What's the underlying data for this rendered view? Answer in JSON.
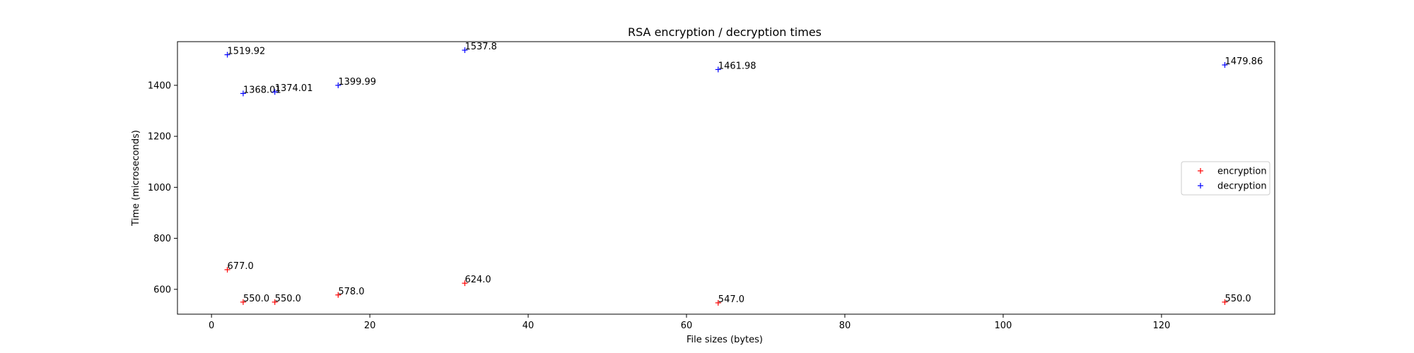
{
  "chart_data": {
    "type": "scatter",
    "title": "RSA encryption / decryption times",
    "xlabel": "File sizes (bytes)",
    "ylabel": "Time (microseconds)",
    "xlim": [
      -4.3,
      134.3
    ],
    "ylim": [
      502.6,
      1571.2
    ],
    "xticks": [
      0,
      20,
      40,
      60,
      80,
      100,
      120
    ],
    "yticks": [
      600,
      800,
      1000,
      1200,
      1400
    ],
    "grid": false,
    "legend_position": "center-right",
    "series": [
      {
        "name": "encryption",
        "color": "#ff0000",
        "marker": "+",
        "x": [
          2,
          4,
          8,
          16,
          32,
          64,
          128
        ],
        "y": [
          677.0,
          550.0,
          550.0,
          578.0,
          624.0,
          547.0,
          550.0
        ],
        "labels": [
          "677.0",
          "550.0",
          "550.0",
          "578.0",
          "624.0",
          "547.0",
          "550.0"
        ]
      },
      {
        "name": "decryption",
        "color": "#0000ff",
        "marker": "+",
        "x": [
          2,
          4,
          8,
          16,
          32,
          64,
          128
        ],
        "y": [
          1519.92,
          1368.01,
          1374.01,
          1399.99,
          1537.8,
          1461.98,
          1479.86
        ],
        "labels": [
          "1519.92",
          "1368.01",
          "1374.01",
          "1399.99",
          "1537.8",
          "1461.98",
          "1479.86"
        ]
      }
    ]
  }
}
